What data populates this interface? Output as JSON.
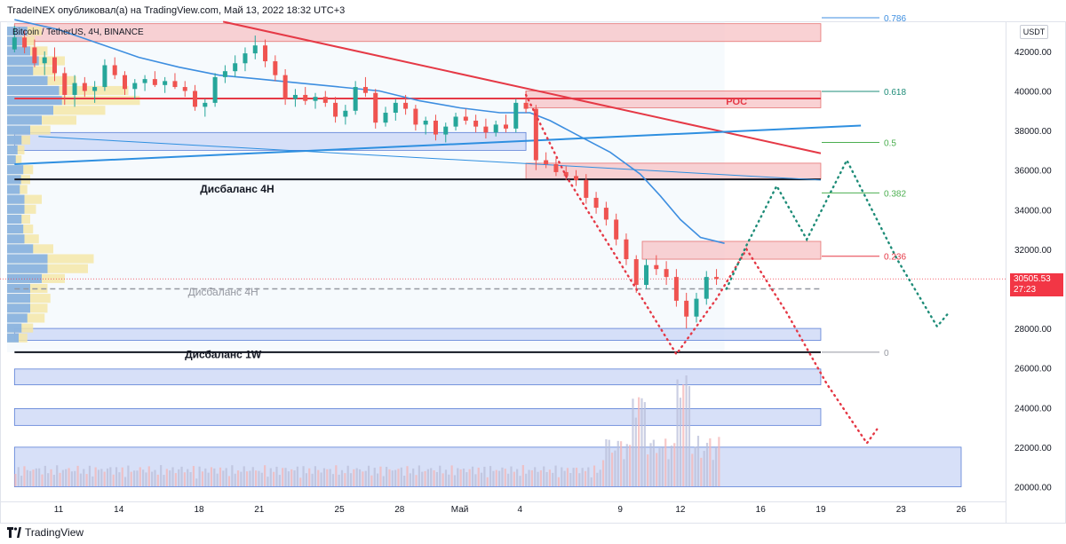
{
  "header": {
    "publisher_text": "TradeINEX опубликовал(а) на TradingView.com, Май 13, 2022 18:32 UTC+3",
    "symbol_text": "Bitcoin / TetherUS, 4Ч, BINANCE",
    "quote_currency": "USDT"
  },
  "footer": {
    "brand": "TradingView"
  },
  "current_price": {
    "value": "30505.53",
    "countdown": "27:23"
  },
  "colors": {
    "up": "#26a69a",
    "down": "#ef5350",
    "resistance_zone": "#f7c5c8",
    "support_zone": "#c9d6f6",
    "trend_red": "#e53946",
    "trend_blue": "#2e8fe0",
    "ma": "#3d8ee0",
    "forecast_red": "#e53946",
    "forecast_green": "#1e8c78",
    "fib_line": "#4caf50"
  },
  "chart_data": {
    "type": "candlestick",
    "x_tick_labels": [
      "11",
      "14",
      "18",
      "21",
      "25",
      "28",
      "Май",
      "4",
      "9",
      "12",
      "16",
      "19",
      "23",
      "26"
    ],
    "x_ticks": [
      {
        "label": "11",
        "day": 11
      },
      {
        "label": "14",
        "day": 14
      },
      {
        "label": "18",
        "day": 18
      },
      {
        "label": "21",
        "day": 21
      },
      {
        "label": "25",
        "day": 25
      },
      {
        "label": "28",
        "day": 28
      },
      {
        "label": "Май",
        "day": 31
      },
      {
        "label": "4",
        "day": 34
      },
      {
        "label": "9",
        "day": 39
      },
      {
        "label": "12",
        "day": 42
      },
      {
        "label": "16",
        "day": 46
      },
      {
        "label": "19",
        "day": 49
      },
      {
        "label": "23",
        "day": 53
      },
      {
        "label": "26",
        "day": 56
      }
    ],
    "y_tick_labels": [
      "20000.00",
      "22000.00",
      "24000.00",
      "26000.00",
      "28000.00",
      "30000.00",
      "32000.00",
      "34000.00",
      "36000.00",
      "38000.00",
      "40000.00",
      "42000.00"
    ],
    "y_ticks": [
      20000,
      22000,
      24000,
      26000,
      28000,
      30000,
      32000,
      34000,
      36000,
      38000,
      40000,
      42000
    ],
    "ylim": [
      19300,
      43500
    ],
    "fib_levels": [
      {
        "label": "0.786",
        "price": 43700
      },
      {
        "label": "0.618",
        "price": 39980
      },
      {
        "label": "0.5",
        "price": 37400
      },
      {
        "label": "0.382",
        "price": 34850
      },
      {
        "label": "0.236",
        "price": 31650
      },
      {
        "label": "0",
        "price": 26800
      }
    ],
    "zones": [
      {
        "name": "resistance-zone-top",
        "kind": "resistance",
        "price_low": 42500,
        "price_high": 43400,
        "day_from": 8.8,
        "day_to": 49
      },
      {
        "name": "poc-zone",
        "kind": "resistance",
        "price_low": 39150,
        "price_high": 40000,
        "day_from": 34.3,
        "day_to": 49
      },
      {
        "name": "resistance-zone-36k",
        "kind": "resistance",
        "price_low": 35550,
        "price_high": 36350,
        "day_from": 34.3,
        "day_to": 49
      },
      {
        "name": "resistance-zone-32k",
        "kind": "resistance",
        "price_low": 31500,
        "price_high": 32400,
        "day_from": 40.1,
        "day_to": 49
      },
      {
        "name": "support-zone-38k",
        "kind": "support",
        "price_low": 37000,
        "price_high": 37900,
        "day_from": 8.8,
        "day_to": 34.3
      },
      {
        "name": "support-zone-28k",
        "kind": "support",
        "price_low": 27400,
        "price_high": 28000,
        "day_from": 8.8,
        "day_to": 49
      },
      {
        "name": "support-zone-26k",
        "kind": "support",
        "price_low": 25150,
        "price_high": 25950,
        "day_from": 8.8,
        "day_to": 49
      },
      {
        "name": "support-zone-24k",
        "kind": "support",
        "price_low": 23100,
        "price_high": 23950,
        "day_from": 8.8,
        "day_to": 49
      },
      {
        "name": "support-zone-21k",
        "kind": "support",
        "price_low": 20000,
        "price_high": 22000,
        "day_from": 8.8,
        "day_to": 56
      }
    ],
    "levels": [
      {
        "name": "imbalance-4h-level",
        "price": 35530,
        "day_from": 8.8,
        "day_to": 49
      },
      {
        "name": "imbalance-1w-level",
        "price": 26800,
        "day_from": 8.8,
        "day_to": 49
      },
      {
        "name": "poc-level",
        "price": 39620,
        "day_from": 8.8,
        "day_to": 49
      }
    ],
    "dashed_level": {
      "price": 30000,
      "day_from": 8.8,
      "day_to": 49
    },
    "annotations": [
      {
        "text": "POC",
        "price": 39300,
        "day": 44.8,
        "color": "#e53946"
      },
      {
        "text": "Дисбаланс 4Н",
        "price": 34870,
        "day": 19.9,
        "color": "#131722"
      },
      {
        "text": "Дисбаланс 4Н",
        "price": 29670,
        "day": 19.2,
        "color": "#9598a1"
      },
      {
        "text": "Дисбаланс 1W",
        "price": 26500,
        "day": 19.2,
        "color": "#131722"
      }
    ],
    "trendlines": [
      {
        "name": "red-descending-trendline",
        "color": "#e53946",
        "points": [
          [
            19.2,
            43500
          ],
          [
            49,
            36850
          ]
        ]
      },
      {
        "name": "blue-ascending-trendline",
        "color": "#2e8fe0",
        "points": [
          [
            8.8,
            36300
          ],
          [
            51,
            38250
          ]
        ]
      },
      {
        "name": "blue-descending-trendline",
        "color": "#2e8fe0",
        "points": [
          [
            10,
            37700
          ],
          [
            49,
            35500
          ]
        ]
      }
    ],
    "moving_average": [
      [
        8.8,
        43600
      ],
      [
        11,
        43100
      ],
      [
        13,
        42400
      ],
      [
        15,
        41700
      ],
      [
        17,
        41200
      ],
      [
        19,
        40800
      ],
      [
        21,
        40600
      ],
      [
        23,
        40400
      ],
      [
        25,
        40200
      ],
      [
        27,
        40000
      ],
      [
        29,
        39500
      ],
      [
        31,
        39150
      ],
      [
        33,
        38900
      ],
      [
        34.5,
        38900
      ],
      [
        35.5,
        38500
      ],
      [
        37,
        37700
      ],
      [
        38.5,
        36900
      ],
      [
        40,
        35800
      ],
      [
        41,
        34700
      ],
      [
        42,
        33500
      ],
      [
        43,
        32600
      ],
      [
        44.2,
        32300
      ]
    ],
    "volume_profile_rows": [
      {
        "price": 43000,
        "total": 60,
        "buy": 35
      },
      {
        "price": 42500,
        "total": 48,
        "buy": 26
      },
      {
        "price": 42000,
        "total": 70,
        "buy": 40
      },
      {
        "price": 41500,
        "total": 100,
        "buy": 55
      },
      {
        "price": 41000,
        "total": 85,
        "buy": 45
      },
      {
        "price": 40500,
        "total": 120,
        "buy": 70
      },
      {
        "price": 40000,
        "total": 210,
        "buy": 90
      },
      {
        "price": 39500,
        "total": 230,
        "buy": 95
      },
      {
        "price": 39000,
        "total": 170,
        "buy": 80
      },
      {
        "price": 38500,
        "total": 120,
        "buy": 60
      },
      {
        "price": 38000,
        "total": 75,
        "buy": 40
      },
      {
        "price": 37500,
        "total": 40,
        "buy": 25
      },
      {
        "price": 37000,
        "total": 30,
        "buy": 18
      },
      {
        "price": 36500,
        "total": 25,
        "buy": 15
      },
      {
        "price": 36000,
        "total": 45,
        "buy": 28
      },
      {
        "price": 35500,
        "total": 40,
        "buy": 24
      },
      {
        "price": 35000,
        "total": 35,
        "buy": 22
      },
      {
        "price": 34500,
        "total": 60,
        "buy": 30
      },
      {
        "price": 34000,
        "total": 50,
        "buy": 30
      },
      {
        "price": 33500,
        "total": 40,
        "buy": 25
      },
      {
        "price": 33000,
        "total": 45,
        "buy": 28
      },
      {
        "price": 32500,
        "total": 55,
        "buy": 30
      },
      {
        "price": 32000,
        "total": 80,
        "buy": 45
      },
      {
        "price": 31500,
        "total": 150,
        "buy": 70
      },
      {
        "price": 31000,
        "total": 140,
        "buy": 70
      },
      {
        "price": 30500,
        "total": 100,
        "buy": 60
      },
      {
        "price": 30000,
        "total": 70,
        "buy": 40
      },
      {
        "price": 29500,
        "total": 75,
        "buy": 40
      },
      {
        "price": 29000,
        "total": 70,
        "buy": 40
      },
      {
        "price": 28500,
        "total": 65,
        "buy": 35
      },
      {
        "price": 28000,
        "total": 45,
        "buy": 25
      },
      {
        "price": 27500,
        "total": 35,
        "buy": 20
      }
    ],
    "candles": [
      [
        8.8,
        42100,
        43300,
        41950,
        42700
      ],
      [
        9.3,
        42700,
        43050,
        41900,
        42200
      ],
      [
        9.8,
        42200,
        42600,
        41200,
        41400
      ],
      [
        10.3,
        41400,
        42000,
        40800,
        41700
      ],
      [
        10.8,
        41700,
        42200,
        40500,
        40900
      ],
      [
        11.3,
        40900,
        41200,
        39300,
        39800
      ],
      [
        11.8,
        39800,
        40800,
        39200,
        40400
      ],
      [
        12.3,
        40400,
        40700,
        39700,
        40000
      ],
      [
        12.8,
        40000,
        40500,
        39400,
        40200
      ],
      [
        13.3,
        40200,
        41600,
        40000,
        41300
      ],
      [
        13.8,
        41300,
        41700,
        40600,
        40800
      ],
      [
        14.3,
        40800,
        41000,
        39800,
        40100
      ],
      [
        14.8,
        40100,
        40600,
        39600,
        40400
      ],
      [
        15.3,
        40400,
        40800,
        40000,
        40600
      ],
      [
        15.8,
        40600,
        41000,
        40200,
        40300
      ],
      [
        16.3,
        40300,
        40700,
        39900,
        40500
      ],
      [
        16.8,
        40500,
        40900,
        40100,
        40200
      ],
      [
        17.3,
        40200,
        40500,
        39700,
        40000
      ],
      [
        17.8,
        40000,
        40300,
        39000,
        39200
      ],
      [
        18.3,
        39200,
        39600,
        38700,
        39400
      ],
      [
        18.8,
        39400,
        40900,
        39200,
        40700
      ],
      [
        19.3,
        40700,
        41300,
        40400,
        41000
      ],
      [
        19.8,
        41000,
        41800,
        40700,
        41400
      ],
      [
        20.3,
        41400,
        42200,
        41000,
        41900
      ],
      [
        20.8,
        41900,
        42800,
        41600,
        42300
      ],
      [
        21.3,
        42300,
        42600,
        41200,
        41500
      ],
      [
        21.8,
        41500,
        41800,
        40500,
        40800
      ],
      [
        22.3,
        40800,
        41100,
        39300,
        39600
      ],
      [
        22.8,
        39600,
        40100,
        39200,
        39800
      ],
      [
        23.3,
        39800,
        40200,
        39300,
        39500
      ],
      [
        23.8,
        39500,
        39900,
        39100,
        39700
      ],
      [
        24.3,
        39700,
        40000,
        39200,
        39400
      ],
      [
        24.8,
        39400,
        39700,
        38400,
        38700
      ],
      [
        25.3,
        38700,
        39300,
        38300,
        39000
      ],
      [
        25.8,
        39000,
        40500,
        38800,
        40200
      ],
      [
        26.3,
        40200,
        40700,
        39700,
        39900
      ],
      [
        26.8,
        39900,
        40100,
        38100,
        38400
      ],
      [
        27.3,
        38400,
        39200,
        38200,
        38900
      ],
      [
        27.8,
        38900,
        39600,
        38500,
        39400
      ],
      [
        28.3,
        39400,
        39800,
        38800,
        39100
      ],
      [
        28.8,
        39100,
        39300,
        38000,
        38300
      ],
      [
        29.3,
        38300,
        38700,
        37800,
        38500
      ],
      [
        29.8,
        38500,
        38800,
        37500,
        37800
      ],
      [
        30.3,
        37800,
        38400,
        37400,
        38200
      ],
      [
        30.8,
        38200,
        38900,
        38000,
        38700
      ],
      [
        31.3,
        38700,
        39100,
        38300,
        38500
      ],
      [
        31.8,
        38500,
        38800,
        37900,
        38200
      ],
      [
        32.3,
        38200,
        38600,
        37600,
        37900
      ],
      [
        32.8,
        37900,
        38500,
        37700,
        38300
      ],
      [
        33.3,
        38300,
        38800,
        37900,
        38100
      ],
      [
        33.8,
        38100,
        39600,
        37900,
        39400
      ],
      [
        34.3,
        39400,
        40000,
        38900,
        39100
      ],
      [
        34.8,
        39100,
        39300,
        36000,
        36500
      ],
      [
        35.3,
        36500,
        36900,
        36100,
        36300
      ],
      [
        35.8,
        36300,
        36600,
        35700,
        35900
      ],
      [
        36.3,
        35900,
        36200,
        35500,
        35700
      ],
      [
        36.8,
        35700,
        36000,
        35200,
        35500
      ],
      [
        37.3,
        35500,
        35800,
        34300,
        34600
      ],
      [
        37.8,
        34600,
        34900,
        33800,
        34100
      ],
      [
        38.3,
        34100,
        34400,
        33200,
        33500
      ],
      [
        38.8,
        33500,
        33800,
        32200,
        32500
      ],
      [
        39.3,
        32500,
        32800,
        31200,
        31500
      ],
      [
        39.8,
        31500,
        31700,
        29800,
        30200
      ],
      [
        40.3,
        30200,
        31500,
        30000,
        31200
      ],
      [
        40.8,
        31200,
        31700,
        30700,
        31000
      ],
      [
        41.3,
        31000,
        31400,
        30200,
        30600
      ],
      [
        41.8,
        30600,
        31000,
        29100,
        29400
      ],
      [
        42.3,
        29400,
        29800,
        28000,
        28600
      ],
      [
        42.8,
        28600,
        29800,
        28300,
        29500
      ],
      [
        43.3,
        29500,
        30900,
        29200,
        30600
      ],
      [
        43.8,
        30600,
        31000,
        30200,
        30500
      ]
    ],
    "volume_bars_max_units": 100,
    "forecast_red_path": [
      [
        34.3,
        39800
      ],
      [
        36.3,
        35700
      ],
      [
        39.8,
        30000
      ],
      [
        41.8,
        26700
      ],
      [
        43.8,
        29500
      ],
      [
        45.3,
        32000
      ],
      [
        47.3,
        28800
      ],
      [
        49.3,
        25200
      ],
      [
        51.3,
        22200
      ],
      [
        51.8,
        22900
      ]
    ],
    "forecast_green_path": [
      [
        44.3,
        30000
      ],
      [
        45.3,
        32200
      ],
      [
        46.8,
        35200
      ],
      [
        48.3,
        32500
      ],
      [
        50.3,
        36500
      ],
      [
        52.8,
        31500
      ],
      [
        54.8,
        28100
      ],
      [
        55.3,
        28700
      ]
    ]
  }
}
